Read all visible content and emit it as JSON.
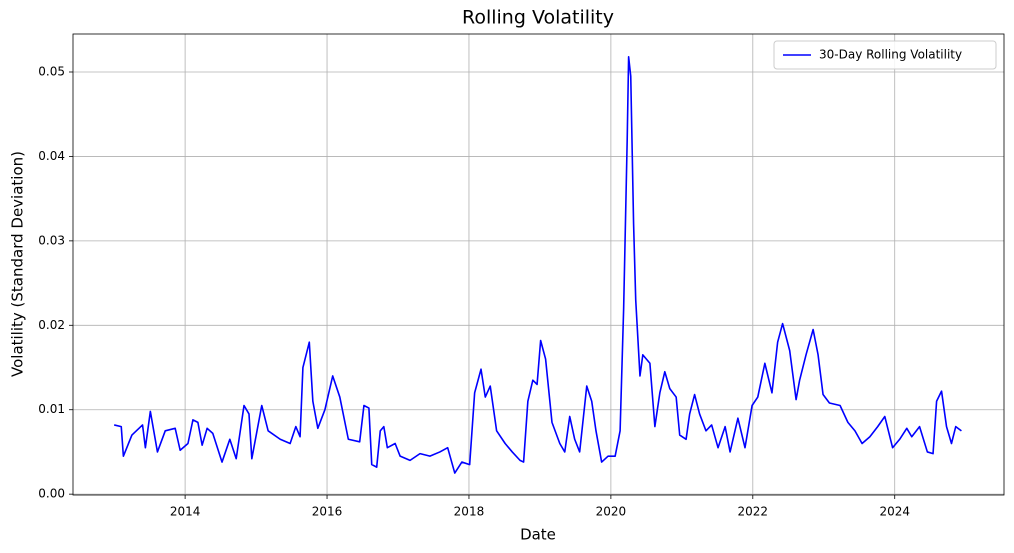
{
  "chart_data": {
    "type": "line",
    "title": "Rolling Volatility",
    "x_label": "Date",
    "y_label": "Volatility (Standard Deviation)",
    "x": [
      2013.0,
      2013.1,
      2013.13,
      2013.25,
      2013.4,
      2013.44,
      2013.51,
      2013.61,
      2013.72,
      2013.86,
      2013.93,
      2014.04,
      2014.11,
      2014.18,
      2014.24,
      2014.31,
      2014.39,
      2014.52,
      2014.63,
      2014.72,
      2014.83,
      2014.9,
      2014.94,
      2015.08,
      2015.17,
      2015.34,
      2015.48,
      2015.56,
      2015.62,
      2015.66,
      2015.75,
      2015.8,
      2015.87,
      2015.97,
      2016.08,
      2016.18,
      2016.3,
      2016.46,
      2016.52,
      2016.59,
      2016.63,
      2016.7,
      2016.75,
      2016.8,
      2016.85,
      2016.96,
      2017.03,
      2017.17,
      2017.31,
      2017.45,
      2017.59,
      2017.7,
      2017.8,
      2017.9,
      2018.01,
      2018.08,
      2018.17,
      2018.23,
      2018.3,
      2018.39,
      2018.51,
      2018.61,
      2018.72,
      2018.77,
      2018.83,
      2018.9,
      2018.96,
      2019.01,
      2019.08,
      2019.17,
      2019.28,
      2019.35,
      2019.42,
      2019.49,
      2019.56,
      2019.66,
      2019.73,
      2019.79,
      2019.87,
      2019.96,
      2020.06,
      2020.13,
      2020.18,
      2020.23,
      2020.25,
      2020.28,
      2020.32,
      2020.35,
      2020.41,
      2020.45,
      2020.55,
      2020.62,
      2020.69,
      2020.76,
      2020.83,
      2020.92,
      2020.97,
      2021.06,
      2021.11,
      2021.18,
      2021.25,
      2021.34,
      2021.42,
      2021.51,
      2021.61,
      2021.68,
      2021.79,
      2021.89,
      2021.99,
      2022.07,
      2022.17,
      2022.27,
      2022.35,
      2022.42,
      2022.52,
      2022.61,
      2022.66,
      2022.75,
      2022.85,
      2022.92,
      2022.99,
      2023.08,
      2023.23,
      2023.34,
      2023.44,
      2023.54,
      2023.65,
      2023.76,
      2023.86,
      2023.97,
      2024.07,
      2024.17,
      2024.24,
      2024.35,
      2024.46,
      2024.54,
      2024.59,
      2024.66,
      2024.73,
      2024.8,
      2024.86,
      2024.94
    ],
    "series": [
      {
        "name": "30-Day Rolling Volatility",
        "color": "#0000ff",
        "values": [
          0.0082,
          0.008,
          0.0045,
          0.007,
          0.0082,
          0.0055,
          0.0098,
          0.005,
          0.0075,
          0.0078,
          0.0052,
          0.006,
          0.0088,
          0.0085,
          0.0058,
          0.0078,
          0.0072,
          0.0038,
          0.0065,
          0.0042,
          0.0105,
          0.0095,
          0.0042,
          0.0105,
          0.0075,
          0.0065,
          0.006,
          0.008,
          0.0068,
          0.015,
          0.018,
          0.011,
          0.0078,
          0.01,
          0.014,
          0.0115,
          0.0065,
          0.0062,
          0.0105,
          0.0102,
          0.0035,
          0.0032,
          0.0075,
          0.008,
          0.0055,
          0.006,
          0.0045,
          0.004,
          0.0048,
          0.0045,
          0.005,
          0.0055,
          0.0025,
          0.0038,
          0.0035,
          0.012,
          0.0148,
          0.0115,
          0.0128,
          0.0075,
          0.006,
          0.005,
          0.004,
          0.0038,
          0.011,
          0.0135,
          0.013,
          0.0182,
          0.016,
          0.0085,
          0.006,
          0.005,
          0.0092,
          0.0065,
          0.005,
          0.0128,
          0.011,
          0.0075,
          0.0038,
          0.0045,
          0.0045,
          0.0075,
          0.022,
          0.042,
          0.0518,
          0.0495,
          0.032,
          0.023,
          0.014,
          0.0165,
          0.0155,
          0.008,
          0.012,
          0.0145,
          0.0125,
          0.0115,
          0.007,
          0.0065,
          0.0095,
          0.0118,
          0.0095,
          0.0075,
          0.0082,
          0.0055,
          0.008,
          0.005,
          0.009,
          0.0055,
          0.0105,
          0.0115,
          0.0155,
          0.012,
          0.018,
          0.0202,
          0.017,
          0.0112,
          0.0135,
          0.0165,
          0.0195,
          0.0165,
          0.0118,
          0.0108,
          0.0105,
          0.0085,
          0.0075,
          0.006,
          0.0068,
          0.008,
          0.0092,
          0.0055,
          0.0065,
          0.0078,
          0.0068,
          0.008,
          0.005,
          0.0048,
          0.011,
          0.0122,
          0.008,
          0.006,
          0.008,
          0.0075
        ]
      }
    ],
    "xlim": [
      2012.42,
      2025.54
    ],
    "ylim": [
      -0.0001,
      0.0545
    ],
    "xticks": [
      2014,
      2016,
      2018,
      2020,
      2022,
      2024
    ],
    "yticks": [
      {
        "value": 0,
        "label": "0.00"
      },
      0.01,
      0.02,
      0.03,
      0.04,
      0.05
    ],
    "grid": true,
    "legend": "upper right"
  }
}
